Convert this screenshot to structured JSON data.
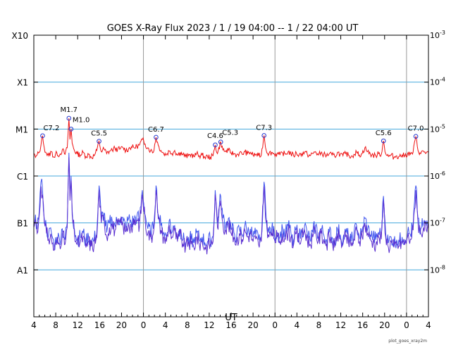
{
  "chart_data": {
    "type": "line",
    "title": "GOES X-Ray Flux   2023 /  1 / 19   04:00 --  1 / 22   04:00   UT",
    "xlabel": "UT",
    "ylabel": "",
    "credit": "plot_goes_xray2m",
    "y_scale": "log",
    "ylim": [
      1e-09,
      0.001
    ],
    "y_class_labels": [
      {
        "label": "X10",
        "value": 0.001
      },
      {
        "label": "X1",
        "value": 0.0001
      },
      {
        "label": "M1",
        "value": 1e-05
      },
      {
        "label": "C1",
        "value": 1e-06
      },
      {
        "label": "B1",
        "value": 1e-07
      },
      {
        "label": "A1",
        "value": 1e-08
      }
    ],
    "y_exponent_labels": [
      {
        "base": "10",
        "exp": "-3",
        "value": 0.001
      },
      {
        "base": "10",
        "exp": "-4",
        "value": 0.0001
      },
      {
        "base": "10",
        "exp": "-5",
        "value": 1e-05
      },
      {
        "base": "10",
        "exp": "-6",
        "value": 1e-06
      },
      {
        "base": "10",
        "exp": "-7",
        "value": 1e-07
      },
      {
        "base": "10",
        "exp": "-8",
        "value": 1e-08
      }
    ],
    "xlim_hours": [
      0,
      72
    ],
    "x_ticks": [
      {
        "t": 0,
        "label": "4"
      },
      {
        "t": 4,
        "label": "8"
      },
      {
        "t": 8,
        "label": "12"
      },
      {
        "t": 12,
        "label": "16"
      },
      {
        "t": 16,
        "label": "20"
      },
      {
        "t": 20,
        "label": "0"
      },
      {
        "t": 24,
        "label": "4"
      },
      {
        "t": 28,
        "label": "8"
      },
      {
        "t": 32,
        "label": "12"
      },
      {
        "t": 36,
        "label": "16"
      },
      {
        "t": 40,
        "label": "20"
      },
      {
        "t": 44,
        "label": "0"
      },
      {
        "t": 48,
        "label": "4"
      },
      {
        "t": 52,
        "label": "8"
      },
      {
        "t": 56,
        "label": "12"
      },
      {
        "t": 60,
        "label": "16"
      },
      {
        "t": 64,
        "label": "20"
      },
      {
        "t": 68,
        "label": "0"
      },
      {
        "t": 72,
        "label": "4"
      }
    ],
    "day_boundaries_hours": [
      20,
      44,
      68
    ],
    "colors": {
      "long": "#ee1111",
      "short": "#5a2fd0",
      "short2": "#4055ee",
      "grid": "#44aadd",
      "day": "#999999",
      "marker": "#2233cc"
    },
    "flares": [
      {
        "label": "C7.2",
        "t": 1.6,
        "flux": 7.2e-06
      },
      {
        "label": "M1.7",
        "t": 6.4,
        "flux": 1.7e-05
      },
      {
        "label": "M1.0",
        "t": 6.8,
        "flux": 1e-05
      },
      {
        "label": "C5.5",
        "t": 11.9,
        "flux": 5.5e-06
      },
      {
        "label": "C6.7",
        "t": 22.3,
        "flux": 6.7e-06
      },
      {
        "label": "C4.6",
        "t": 33.1,
        "flux": 4.6e-06
      },
      {
        "label": "C5.3",
        "t": 34.1,
        "flux": 5.3e-06
      },
      {
        "label": "C7.3",
        "t": 42.0,
        "flux": 7.3e-06
      },
      {
        "label": "C5.6",
        "t": 63.8,
        "flux": 5.6e-06
      },
      {
        "label": "C7.0",
        "t": 69.7,
        "flux": 7e-06
      }
    ],
    "series": [
      {
        "name": "",
        "key": "long",
        "x": [
          0,
          0.3,
          0.6,
          1.0,
          1.3,
          1.6,
          1.9,
          2.3,
          2.7,
          3.2,
          3.7,
          4.2,
          4.7,
          5.2,
          5.7,
          6.1,
          6.4,
          6.6,
          6.8,
          7.0,
          7.4,
          7.9,
          8.5,
          9.0,
          9.5,
          10.0,
          10.5,
          11.0,
          11.5,
          11.9,
          12.3,
          12.8,
          13.3,
          13.8,
          14.3,
          14.8,
          15.3,
          15.8,
          16.3,
          16.8,
          17.3,
          17.8,
          18.3,
          18.8,
          19.3,
          19.8,
          20.3,
          20.8,
          21.3,
          21.8,
          22.3,
          22.7,
          23.2,
          23.7,
          24.2,
          24.7,
          25.2,
          25.7,
          26.2,
          26.7,
          27.2,
          27.7,
          28.2,
          28.7,
          29.2,
          29.7,
          30.2,
          30.7,
          31.2,
          31.7,
          32.2,
          32.7,
          33.1,
          33.5,
          34.1,
          34.5,
          35.0,
          35.5,
          36.0,
          36.5,
          37.0,
          37.5,
          38.0,
          38.5,
          39.0,
          39.5,
          40.0,
          40.5,
          41.0,
          41.5,
          42.0,
          42.4,
          42.9,
          43.4,
          43.9,
          44.4,
          44.9,
          45.4,
          45.9,
          46.4,
          46.9,
          47.4,
          47.9,
          48.4,
          48.9,
          49.4,
          49.9,
          50.4,
          50.9,
          51.4,
          51.9,
          52.4,
          52.9,
          53.4,
          53.9,
          54.4,
          54.9,
          55.4,
          55.9,
          56.4,
          56.9,
          57.4,
          57.9,
          58.4,
          58.9,
          59.4,
          59.9,
          60.4,
          60.9,
          61.4,
          61.9,
          62.4,
          62.9,
          63.4,
          63.8,
          64.2,
          64.7,
          65.2,
          65.7,
          66.2,
          66.7,
          67.2,
          67.7,
          68.2,
          68.7,
          69.2,
          69.7,
          70.1,
          70.6,
          71.1,
          71.6,
          72.0
        ],
        "y": [
          3e-06,
          2.5e-06,
          2.8e-06,
          3.2e-06,
          4.5e-06,
          7.2e-06,
          4e-06,
          3e-06,
          2.7e-06,
          3.3e-06,
          2.5e-06,
          3.1e-06,
          2.8e-06,
          3.6e-06,
          2.9e-06,
          4e-06,
          1.7e-05,
          6e-06,
          1e-05,
          5e-06,
          3.5e-06,
          3e-06,
          2.8e-06,
          3.2e-06,
          2.6e-06,
          2.9e-06,
          2.5e-06,
          2.7e-06,
          3.5e-06,
          5.5e-06,
          3.3e-06,
          3.8e-06,
          3e-06,
          3.4e-06,
          3.6e-06,
          3.9e-06,
          3.7e-06,
          3.8e-06,
          4e-06,
          3.5e-06,
          3.8e-06,
          4.2e-06,
          4e-06,
          4.3e-06,
          4.6e-06,
          6e-06,
          4.8e-06,
          4e-06,
          3.5e-06,
          3.2e-06,
          6.7e-06,
          4.5e-06,
          3.5e-06,
          3e-06,
          2.9e-06,
          3.4e-06,
          3e-06,
          3.5e-06,
          2.8e-06,
          3.2e-06,
          2.9e-06,
          2.6e-06,
          2.7e-06,
          2.9e-06,
          2.6e-06,
          3e-06,
          2.7e-06,
          2.8e-06,
          2.5e-06,
          2.6e-06,
          2.5e-06,
          2.7e-06,
          4.6e-06,
          3e-06,
          5.3e-06,
          3.6e-06,
          3.3e-06,
          3.5e-06,
          3.1e-06,
          3e-06,
          2.8e-06,
          3.1e-06,
          2.9e-06,
          3.3e-06,
          3e-06,
          3.2e-06,
          2.8e-06,
          2.9e-06,
          2.7e-06,
          2.8e-06,
          7.3e-06,
          3.5e-06,
          3e-06,
          3.2e-06,
          2.9e-06,
          3e-06,
          2.8e-06,
          3.1e-06,
          2.9e-06,
          3.3e-06,
          3e-06,
          2.7e-06,
          3.1e-06,
          2.8e-06,
          3e-06,
          3.2e-06,
          2.9e-06,
          2.7e-06,
          3e-06,
          3.3e-06,
          2.8e-06,
          3.1e-06,
          2.9e-06,
          2.7e-06,
          3e-06,
          2.8e-06,
          2.6e-06,
          3.2e-06,
          2.9e-06,
          2.7e-06,
          3e-06,
          2.8e-06,
          2.6e-06,
          2.9e-06,
          3.2e-06,
          2.8e-06,
          3e-06,
          4e-06,
          3.3e-06,
          2.9e-06,
          2.8e-06,
          2.7e-06,
          3e-06,
          2.9e-06,
          5.6e-06,
          3e-06,
          2.6e-06,
          2.8e-06,
          2.5e-06,
          2.7e-06,
          2.6e-06,
          2.8e-06,
          2.7e-06,
          3e-06,
          2.9e-06,
          3.2e-06,
          7e-06,
          3.5e-06,
          3e-06,
          3.4e-06,
          3.1e-06,
          3.2e-06
        ]
      },
      {
        "name": "",
        "key": "short",
        "x": [
          0,
          0.3,
          0.6,
          1.0,
          1.3,
          1.6,
          1.9,
          2.3,
          2.7,
          3.2,
          3.7,
          4.2,
          4.7,
          5.2,
          5.7,
          6.1,
          6.4,
          6.6,
          6.8,
          7.0,
          7.4,
          7.9,
          8.5,
          9.0,
          9.5,
          10.0,
          10.5,
          11.0,
          11.5,
          11.9,
          12.3,
          12.8,
          13.3,
          13.8,
          14.3,
          14.8,
          15.3,
          15.8,
          16.3,
          16.8,
          17.3,
          17.8,
          18.3,
          18.8,
          19.3,
          19.8,
          20.3,
          20.8,
          21.3,
          21.8,
          22.3,
          22.7,
          23.2,
          23.7,
          24.2,
          24.7,
          25.2,
          25.7,
          26.2,
          26.7,
          27.2,
          27.7,
          28.2,
          28.7,
          29.2,
          29.7,
          30.2,
          30.7,
          31.2,
          31.7,
          32.2,
          32.7,
          33.1,
          33.5,
          34.1,
          34.5,
          35.0,
          35.5,
          36.0,
          36.5,
          37.0,
          37.5,
          38.0,
          38.5,
          39.0,
          39.5,
          40.0,
          40.5,
          41.0,
          41.5,
          42.0,
          42.4,
          42.9,
          43.4,
          43.9,
          44.4,
          44.9,
          45.4,
          45.9,
          46.4,
          46.9,
          47.4,
          47.9,
          48.4,
          48.9,
          49.4,
          49.9,
          50.4,
          50.9,
          51.4,
          51.9,
          52.4,
          52.9,
          53.4,
          53.9,
          54.4,
          54.9,
          55.4,
          55.9,
          56.4,
          56.9,
          57.4,
          57.9,
          58.4,
          58.9,
          59.4,
          59.9,
          60.4,
          60.9,
          61.4,
          61.9,
          62.4,
          62.9,
          63.4,
          63.8,
          64.2,
          64.7,
          65.2,
          65.7,
          66.2,
          66.7,
          67.2,
          67.7,
          68.2,
          68.7,
          69.2,
          69.7,
          70.1,
          70.6,
          71.1,
          71.6,
          72.0
        ],
        "y": [
          8e-08,
          1.2e-07,
          6e-08,
          1.5e-07,
          6e-07,
          4e-07,
          1e-07,
          6e-08,
          4.5e-08,
          5e-08,
          2.6e-08,
          4e-08,
          3.5e-08,
          6e-08,
          3.5e-08,
          8e-08,
          2.5e-06,
          3e-07,
          8e-07,
          1.5e-07,
          6e-08,
          3.5e-08,
          4e-08,
          5e-08,
          3e-08,
          4e-08,
          3.2e-08,
          3.5e-08,
          5e-08,
          5e-07,
          1e-07,
          1.3e-07,
          5e-08,
          8e-08,
          9e-08,
          7e-08,
          9e-08,
          1e-07,
          8.5e-08,
          6.5e-08,
          1e-07,
          8e-08,
          9e-08,
          1.1e-07,
          9e-08,
          4e-07,
          1.2e-07,
          6e-08,
          5e-08,
          6e-08,
          5e-07,
          1.2e-07,
          7e-08,
          5e-08,
          4e-08,
          9e-08,
          5e-08,
          7e-08,
          4e-08,
          6e-08,
          3.5e-08,
          3e-08,
          4e-08,
          3.5e-08,
          3e-08,
          5e-08,
          3.5e-08,
          4e-08,
          3e-08,
          3.2e-08,
          3.5e-08,
          4e-08,
          4e-07,
          8e-08,
          3e-07,
          1e-07,
          7e-08,
          1e-07,
          6e-08,
          5e-08,
          4e-08,
          6e-08,
          4.5e-08,
          7e-08,
          5e-08,
          6e-08,
          4e-08,
          4.5e-08,
          3.5e-08,
          4e-08,
          6e-07,
          1e-07,
          5e-08,
          6e-08,
          4.5e-08,
          5e-08,
          4e-08,
          6e-08,
          4.5e-08,
          7e-08,
          5e-08,
          3.5e-08,
          6e-08,
          4e-08,
          5e-08,
          7e-08,
          4.5e-08,
          3.5e-08,
          5e-08,
          7e-08,
          4e-08,
          6e-08,
          4.5e-08,
          3.5e-08,
          5e-08,
          4e-08,
          3e-08,
          6e-08,
          4.5e-08,
          3.5e-08,
          5e-08,
          4e-08,
          3.2e-08,
          4.5e-08,
          7e-08,
          4e-08,
          5e-08,
          1e-07,
          6e-08,
          4.5e-08,
          4e-08,
          3.5e-08,
          5e-08,
          4.5e-08,
          3e-07,
          5e-08,
          3e-08,
          4e-08,
          3e-08,
          3.5e-08,
          3.2e-08,
          4e-08,
          3.5e-08,
          5e-08,
          4.5e-08,
          7e-08,
          5e-07,
          1e-07,
          6e-08,
          8e-08,
          7e-08,
          7.5e-08
        ]
      }
    ]
  }
}
